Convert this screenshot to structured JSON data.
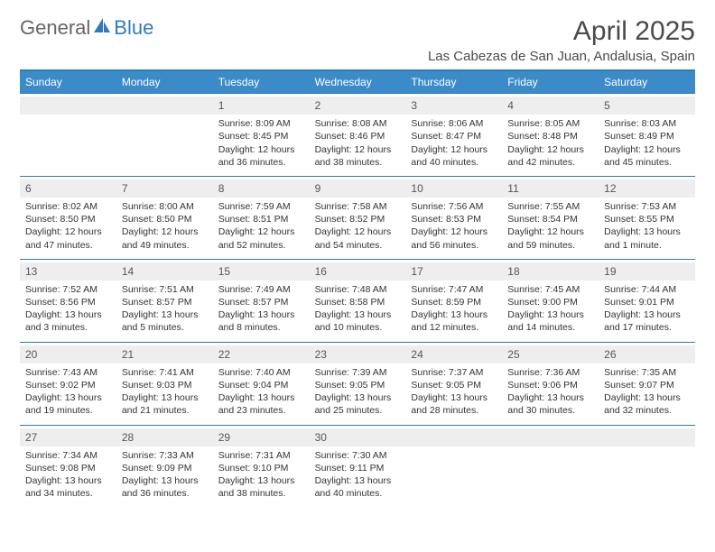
{
  "brand": {
    "part1": "General",
    "part2": "Blue"
  },
  "title": {
    "month": "April 2025",
    "location": "Las Cabezas de San Juan, Andalusia, Spain"
  },
  "colors": {
    "accent": "#2f7abf",
    "header_bg": "#3b8bc9",
    "header_text": "#ffffff",
    "daynum_bg": "#eeeeee",
    "text": "#333333"
  },
  "day_labels": [
    "Sunday",
    "Monday",
    "Tuesday",
    "Wednesday",
    "Thursday",
    "Friday",
    "Saturday"
  ],
  "weeks": [
    [
      null,
      null,
      {
        "n": "1",
        "sunrise": "8:09 AM",
        "sunset": "8:45 PM",
        "daylight": "12 hours and 36 minutes."
      },
      {
        "n": "2",
        "sunrise": "8:08 AM",
        "sunset": "8:46 PM",
        "daylight": "12 hours and 38 minutes."
      },
      {
        "n": "3",
        "sunrise": "8:06 AM",
        "sunset": "8:47 PM",
        "daylight": "12 hours and 40 minutes."
      },
      {
        "n": "4",
        "sunrise": "8:05 AM",
        "sunset": "8:48 PM",
        "daylight": "12 hours and 42 minutes."
      },
      {
        "n": "5",
        "sunrise": "8:03 AM",
        "sunset": "8:49 PM",
        "daylight": "12 hours and 45 minutes."
      }
    ],
    [
      {
        "n": "6",
        "sunrise": "8:02 AM",
        "sunset": "8:50 PM",
        "daylight": "12 hours and 47 minutes."
      },
      {
        "n": "7",
        "sunrise": "8:00 AM",
        "sunset": "8:50 PM",
        "daylight": "12 hours and 49 minutes."
      },
      {
        "n": "8",
        "sunrise": "7:59 AM",
        "sunset": "8:51 PM",
        "daylight": "12 hours and 52 minutes."
      },
      {
        "n": "9",
        "sunrise": "7:58 AM",
        "sunset": "8:52 PM",
        "daylight": "12 hours and 54 minutes."
      },
      {
        "n": "10",
        "sunrise": "7:56 AM",
        "sunset": "8:53 PM",
        "daylight": "12 hours and 56 minutes."
      },
      {
        "n": "11",
        "sunrise": "7:55 AM",
        "sunset": "8:54 PM",
        "daylight": "12 hours and 59 minutes."
      },
      {
        "n": "12",
        "sunrise": "7:53 AM",
        "sunset": "8:55 PM",
        "daylight": "13 hours and 1 minute."
      }
    ],
    [
      {
        "n": "13",
        "sunrise": "7:52 AM",
        "sunset": "8:56 PM",
        "daylight": "13 hours and 3 minutes."
      },
      {
        "n": "14",
        "sunrise": "7:51 AM",
        "sunset": "8:57 PM",
        "daylight": "13 hours and 5 minutes."
      },
      {
        "n": "15",
        "sunrise": "7:49 AM",
        "sunset": "8:57 PM",
        "daylight": "13 hours and 8 minutes."
      },
      {
        "n": "16",
        "sunrise": "7:48 AM",
        "sunset": "8:58 PM",
        "daylight": "13 hours and 10 minutes."
      },
      {
        "n": "17",
        "sunrise": "7:47 AM",
        "sunset": "8:59 PM",
        "daylight": "13 hours and 12 minutes."
      },
      {
        "n": "18",
        "sunrise": "7:45 AM",
        "sunset": "9:00 PM",
        "daylight": "13 hours and 14 minutes."
      },
      {
        "n": "19",
        "sunrise": "7:44 AM",
        "sunset": "9:01 PM",
        "daylight": "13 hours and 17 minutes."
      }
    ],
    [
      {
        "n": "20",
        "sunrise": "7:43 AM",
        "sunset": "9:02 PM",
        "daylight": "13 hours and 19 minutes."
      },
      {
        "n": "21",
        "sunrise": "7:41 AM",
        "sunset": "9:03 PM",
        "daylight": "13 hours and 21 minutes."
      },
      {
        "n": "22",
        "sunrise": "7:40 AM",
        "sunset": "9:04 PM",
        "daylight": "13 hours and 23 minutes."
      },
      {
        "n": "23",
        "sunrise": "7:39 AM",
        "sunset": "9:05 PM",
        "daylight": "13 hours and 25 minutes."
      },
      {
        "n": "24",
        "sunrise": "7:37 AM",
        "sunset": "9:05 PM",
        "daylight": "13 hours and 28 minutes."
      },
      {
        "n": "25",
        "sunrise": "7:36 AM",
        "sunset": "9:06 PM",
        "daylight": "13 hours and 30 minutes."
      },
      {
        "n": "26",
        "sunrise": "7:35 AM",
        "sunset": "9:07 PM",
        "daylight": "13 hours and 32 minutes."
      }
    ],
    [
      {
        "n": "27",
        "sunrise": "7:34 AM",
        "sunset": "9:08 PM",
        "daylight": "13 hours and 34 minutes."
      },
      {
        "n": "28",
        "sunrise": "7:33 AM",
        "sunset": "9:09 PM",
        "daylight": "13 hours and 36 minutes."
      },
      {
        "n": "29",
        "sunrise": "7:31 AM",
        "sunset": "9:10 PM",
        "daylight": "13 hours and 38 minutes."
      },
      {
        "n": "30",
        "sunrise": "7:30 AM",
        "sunset": "9:11 PM",
        "daylight": "13 hours and 40 minutes."
      },
      null,
      null,
      null
    ]
  ],
  "labels": {
    "sunrise": "Sunrise:",
    "sunset": "Sunset:",
    "daylight": "Daylight:"
  }
}
